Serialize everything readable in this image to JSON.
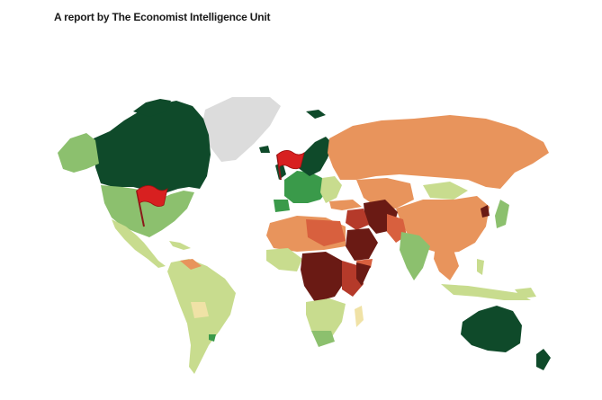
{
  "header": {
    "text": "A report by The Economist Intelligence Unit"
  },
  "colors": {
    "dark_green": "#0f4a2a",
    "green": "#3a9a4a",
    "light_green": "#8cc06e",
    "pale_green": "#c8dc8e",
    "cream": "#f0e2a6",
    "orange": "#e8945c",
    "red_orange": "#d8603e",
    "red": "#b53a2a",
    "dark_red": "#6a1a14",
    "grey": "#dcdcdc",
    "flag": "#d82020"
  },
  "flags": [
    {
      "location": "United States"
    },
    {
      "location": "United Kingdom"
    }
  ],
  "icons": [
    "flag-icon"
  ]
}
